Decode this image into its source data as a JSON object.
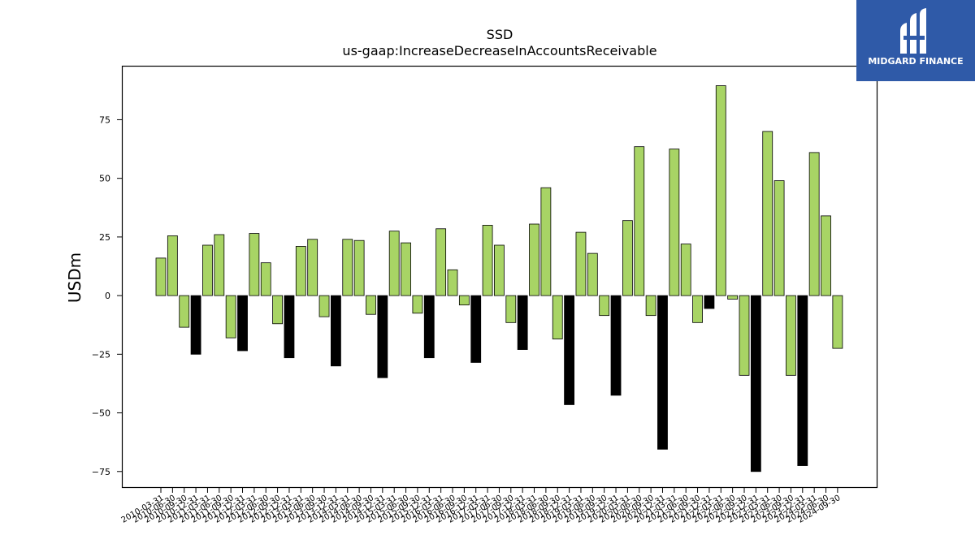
{
  "brand": {
    "name": "MIDGARD FINANCE",
    "bg_color": "#2f5aa8"
  },
  "chart_data": {
    "type": "bar",
    "title": "SSD",
    "subtitle": "us-gaap:IncreaseDecreaseInAccountsReceivable",
    "xlabel": "",
    "ylabel": "USDm",
    "ylim": [
      -82,
      98
    ],
    "yticks": [
      -75,
      -50,
      -25,
      0,
      25,
      50,
      75
    ],
    "grid": false,
    "colors": {
      "positive_bar": "#a8d465",
      "q4_bar": "#000000",
      "edge": "#000000"
    },
    "categories": [
      "2010-03-31",
      "2010-06-30",
      "2010-09-30",
      "2010-12-31",
      "2011-03-31",
      "2011-06-30",
      "2011-09-30",
      "2011-12-31",
      "2012-03-31",
      "2012-06-30",
      "2012-09-30",
      "2012-12-31",
      "2013-03-31",
      "2013-06-30",
      "2013-09-30",
      "2013-12-31",
      "2014-03-31",
      "2014-06-30",
      "2014-09-30",
      "2014-12-31",
      "2015-03-31",
      "2015-06-30",
      "2015-09-30",
      "2015-12-31",
      "2016-03-31",
      "2016-06-30",
      "2016-09-30",
      "2016-12-31",
      "2017-03-31",
      "2017-06-30",
      "2017-09-30",
      "2017-12-31",
      "2018-03-31",
      "2018-06-30",
      "2018-09-30",
      "2018-12-31",
      "2019-03-31",
      "2019-06-30",
      "2019-09-30",
      "2019-12-31",
      "2020-03-31",
      "2020-06-30",
      "2020-09-30",
      "2020-12-31",
      "2021-03-31",
      "2021-06-30",
      "2021-09-30",
      "2021-12-31",
      "2022-03-31",
      "2022-06-30",
      "2022-09-30",
      "2022-12-31",
      "2023-03-31",
      "2023-06-30",
      "2023-09-30",
      "2023-12-31",
      "2024-03-31",
      "2024-06-30",
      "2024-09-30"
    ],
    "values": [
      16,
      25.5,
      -13.5,
      -25,
      21.5,
      26,
      -18,
      -23.5,
      26.5,
      14,
      -12,
      -26.5,
      21,
      24,
      -9,
      -30,
      24,
      23.5,
      -8,
      -35,
      27.5,
      22.5,
      -7.5,
      -26.5,
      28.5,
      11,
      -4,
      -28.5,
      30,
      21.5,
      -11.5,
      -23,
      30.5,
      46,
      -18.5,
      -46.5,
      27,
      18,
      -8.5,
      -42.5,
      32,
      63.5,
      -8.5,
      -65.5,
      62.5,
      22,
      -11.5,
      -5.5,
      89.5,
      -1.5,
      -34,
      -75,
      70,
      49,
      -34,
      -72.5,
      61,
      34,
      -22.5
    ]
  }
}
